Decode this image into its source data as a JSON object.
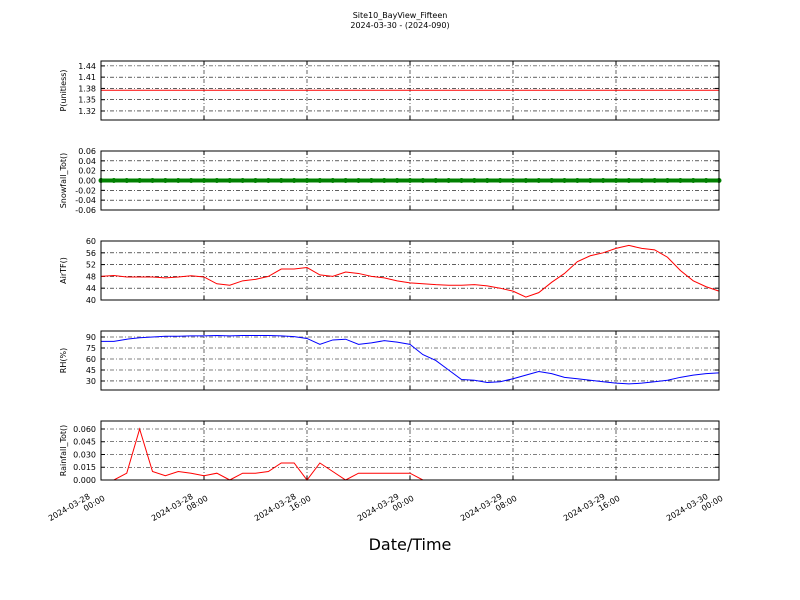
{
  "chart_data": [
    {
      "type": "line",
      "title": "Site10_BayView_Fifteen",
      "subtitle": "2024-03-30 - (2024-090)",
      "ylabel": "P(unitless)",
      "color": "#ff0000",
      "grid": true,
      "xtick_labels": false,
      "x": [
        "2024-03-28 00:00",
        "2024-03-28 01:00",
        "2024-03-28 02:00",
        "2024-03-28 03:00",
        "2024-03-28 04:00",
        "2024-03-28 05:00",
        "2024-03-28 06:00",
        "2024-03-28 07:00",
        "2024-03-28 08:00",
        "2024-03-28 09:00",
        "2024-03-28 10:00",
        "2024-03-28 11:00",
        "2024-03-28 12:00",
        "2024-03-28 13:00",
        "2024-03-28 14:00",
        "2024-03-28 15:00",
        "2024-03-28 16:00",
        "2024-03-28 17:00",
        "2024-03-28 18:00",
        "2024-03-28 19:00",
        "2024-03-28 20:00",
        "2024-03-28 21:00",
        "2024-03-28 22:00",
        "2024-03-28 23:00",
        "2024-03-29 00:00",
        "2024-03-29 01:00",
        "2024-03-29 02:00",
        "2024-03-29 03:00",
        "2024-03-29 04:00",
        "2024-03-29 05:00",
        "2024-03-29 06:00",
        "2024-03-29 07:00",
        "2024-03-29 08:00",
        "2024-03-29 09:00",
        "2024-03-29 10:00",
        "2024-03-29 11:00",
        "2024-03-29 12:00",
        "2024-03-29 13:00",
        "2024-03-29 14:00",
        "2024-03-29 15:00",
        "2024-03-29 16:00",
        "2024-03-29 17:00",
        "2024-03-29 18:00",
        "2024-03-29 19:00",
        "2024-03-29 20:00",
        "2024-03-29 21:00",
        "2024-03-29 22:00",
        "2024-03-29 23:00",
        "2024-03-30 00:00"
      ],
      "values": [
        1.375,
        1.375,
        1.375,
        1.375,
        1.375,
        1.375,
        1.375,
        1.375,
        1.375,
        1.375,
        1.375,
        1.375,
        1.375,
        1.375,
        1.375,
        1.375,
        1.375,
        1.375,
        1.375,
        1.375,
        1.375,
        1.375,
        1.375,
        1.375,
        1.375,
        1.375,
        1.375,
        1.375,
        1.375,
        1.375,
        1.375,
        1.375,
        1.375,
        1.375,
        1.375,
        1.375,
        1.375,
        1.375,
        1.375,
        1.375,
        1.375,
        1.375,
        1.375,
        1.375,
        1.375,
        1.375,
        1.375,
        1.375,
        1.375
      ],
      "xlim": [
        "2024-03-28 00:00",
        "2024-03-30 00:00"
      ],
      "xticks": [
        "2024-03-28 00:00",
        "2024-03-28 08:00",
        "2024-03-28 16:00",
        "2024-03-29 00:00",
        "2024-03-29 08:00",
        "2024-03-29 16:00",
        "2024-03-30 00:00"
      ],
      "ylim": [
        1.296,
        1.453
      ],
      "yticks": [
        1.32,
        1.35,
        1.38,
        1.41,
        1.44
      ]
    },
    {
      "type": "line",
      "ylabel": "Snowfall_Tot()",
      "color": "#008000",
      "markers": true,
      "grid": true,
      "xtick_labels": false,
      "x": [
        "2024-03-28 00:00",
        "2024-03-28 01:00",
        "2024-03-28 02:00",
        "2024-03-28 03:00",
        "2024-03-28 04:00",
        "2024-03-28 05:00",
        "2024-03-28 06:00",
        "2024-03-28 07:00",
        "2024-03-28 08:00",
        "2024-03-28 09:00",
        "2024-03-28 10:00",
        "2024-03-28 11:00",
        "2024-03-28 12:00",
        "2024-03-28 13:00",
        "2024-03-28 14:00",
        "2024-03-28 15:00",
        "2024-03-28 16:00",
        "2024-03-28 17:00",
        "2024-03-28 18:00",
        "2024-03-28 19:00",
        "2024-03-28 20:00",
        "2024-03-28 21:00",
        "2024-03-28 22:00",
        "2024-03-28 23:00",
        "2024-03-29 00:00",
        "2024-03-29 01:00",
        "2024-03-29 02:00",
        "2024-03-29 03:00",
        "2024-03-29 04:00",
        "2024-03-29 05:00",
        "2024-03-29 06:00",
        "2024-03-29 07:00",
        "2024-03-29 08:00",
        "2024-03-29 09:00",
        "2024-03-29 10:00",
        "2024-03-29 11:00",
        "2024-03-29 12:00",
        "2024-03-29 13:00",
        "2024-03-29 14:00",
        "2024-03-29 15:00",
        "2024-03-29 16:00",
        "2024-03-29 17:00",
        "2024-03-29 18:00",
        "2024-03-29 19:00",
        "2024-03-29 20:00",
        "2024-03-29 21:00",
        "2024-03-29 22:00",
        "2024-03-29 23:00",
        "2024-03-30 00:00"
      ],
      "values": [
        0,
        0,
        0,
        0,
        0,
        0,
        0,
        0,
        0,
        0,
        0,
        0,
        0,
        0,
        0,
        0,
        0,
        0,
        0,
        0,
        0,
        0,
        0,
        0,
        0,
        0,
        0,
        0,
        0,
        0,
        0,
        0,
        0,
        0,
        0,
        0,
        0,
        0,
        0,
        0,
        0,
        0,
        0,
        0,
        0,
        0,
        0,
        0,
        0
      ],
      "xlim": [
        "2024-03-28 00:00",
        "2024-03-30 00:00"
      ],
      "xticks": [
        "2024-03-28 00:00",
        "2024-03-28 08:00",
        "2024-03-28 16:00",
        "2024-03-29 00:00",
        "2024-03-29 08:00",
        "2024-03-29 16:00",
        "2024-03-30 00:00"
      ],
      "ylim": [
        -0.06,
        0.06
      ],
      "yticks": [
        -0.06,
        -0.04,
        -0.02,
        {
          "value": 0,
          "label": "0.00"
        },
        0.02,
        0.04,
        0.06
      ]
    },
    {
      "type": "line",
      "ylabel": "AirTF()",
      "color": "#ff0000",
      "grid": true,
      "xtick_labels": false,
      "x": [
        "2024-03-28 00:00",
        "2024-03-28 01:00",
        "2024-03-28 02:00",
        "2024-03-28 03:00",
        "2024-03-28 04:00",
        "2024-03-28 05:00",
        "2024-03-28 06:00",
        "2024-03-28 07:00",
        "2024-03-28 08:00",
        "2024-03-28 09:00",
        "2024-03-28 10:00",
        "2024-03-28 11:00",
        "2024-03-28 12:00",
        "2024-03-28 13:00",
        "2024-03-28 14:00",
        "2024-03-28 15:00",
        "2024-03-28 16:00",
        "2024-03-28 17:00",
        "2024-03-28 18:00",
        "2024-03-28 19:00",
        "2024-03-28 20:00",
        "2024-03-28 21:00",
        "2024-03-28 22:00",
        "2024-03-28 23:00",
        "2024-03-29 00:00",
        "2024-03-29 01:00",
        "2024-03-29 02:00",
        "2024-03-29 03:00",
        "2024-03-29 04:00",
        "2024-03-29 05:00",
        "2024-03-29 06:00",
        "2024-03-29 07:00",
        "2024-03-29 08:00",
        "2024-03-29 09:00",
        "2024-03-29 10:00",
        "2024-03-29 11:00",
        "2024-03-29 12:00",
        "2024-03-29 13:00",
        "2024-03-29 14:00",
        "2024-03-29 15:00",
        "2024-03-29 16:00",
        "2024-03-29 17:00",
        "2024-03-29 18:00",
        "2024-03-29 19:00",
        "2024-03-29 20:00",
        "2024-03-29 21:00",
        "2024-03-29 22:00",
        "2024-03-29 23:00",
        "2024-03-30 00:00"
      ],
      "values": [
        48,
        48.3,
        47.8,
        47.8,
        47.8,
        47.5,
        47.8,
        48.2,
        47.8,
        45.5,
        45,
        46.5,
        47,
        48,
        50.5,
        50.5,
        51,
        48.5,
        48,
        49.5,
        49,
        48,
        47.5,
        46.5,
        45.8,
        45.5,
        45.2,
        45,
        45,
        45.2,
        44.8,
        44,
        43,
        41,
        42.5,
        46,
        49,
        53,
        55,
        56,
        57.5,
        58.5,
        57.5,
        57,
        54.5,
        50,
        46.5,
        44.5,
        43
      ],
      "xlim": [
        "2024-03-28 00:00",
        "2024-03-30 00:00"
      ],
      "xticks": [
        "2024-03-28 00:00",
        "2024-03-28 08:00",
        "2024-03-28 16:00",
        "2024-03-29 00:00",
        "2024-03-29 08:00",
        "2024-03-29 16:00",
        "2024-03-30 00:00"
      ],
      "ylim": [
        40,
        60
      ],
      "yticks": [
        40,
        44,
        48,
        52,
        56,
        60
      ]
    },
    {
      "type": "line",
      "ylabel": "RH(%)",
      "color": "#0000ff",
      "grid": true,
      "xtick_labels": false,
      "x": [
        "2024-03-28 00:00",
        "2024-03-28 01:00",
        "2024-03-28 02:00",
        "2024-03-28 03:00",
        "2024-03-28 04:00",
        "2024-03-28 05:00",
        "2024-03-28 06:00",
        "2024-03-28 07:00",
        "2024-03-28 08:00",
        "2024-03-28 09:00",
        "2024-03-28 10:00",
        "2024-03-28 11:00",
        "2024-03-28 12:00",
        "2024-03-28 13:00",
        "2024-03-28 14:00",
        "2024-03-28 15:00",
        "2024-03-28 16:00",
        "2024-03-28 17:00",
        "2024-03-28 18:00",
        "2024-03-28 19:00",
        "2024-03-28 20:00",
        "2024-03-28 21:00",
        "2024-03-28 22:00",
        "2024-03-28 23:00",
        "2024-03-29 00:00",
        "2024-03-29 01:00",
        "2024-03-29 02:00",
        "2024-03-29 03:00",
        "2024-03-29 04:00",
        "2024-03-29 05:00",
        "2024-03-29 06:00",
        "2024-03-29 07:00",
        "2024-03-29 08:00",
        "2024-03-29 09:00",
        "2024-03-29 10:00",
        "2024-03-29 11:00",
        "2024-03-29 12:00",
        "2024-03-29 13:00",
        "2024-03-29 14:00",
        "2024-03-29 15:00",
        "2024-03-29 16:00",
        "2024-03-29 17:00",
        "2024-03-29 18:00",
        "2024-03-29 19:00",
        "2024-03-29 20:00",
        "2024-03-29 21:00",
        "2024-03-29 22:00",
        "2024-03-29 23:00",
        "2024-03-30 00:00"
      ],
      "values": [
        84,
        84,
        87,
        89,
        90,
        91,
        91,
        91.5,
        91.5,
        92,
        91.5,
        92,
        92,
        92,
        91.5,
        90.5,
        88,
        80,
        86,
        87,
        80,
        82,
        85,
        83,
        80,
        66,
        58,
        45,
        32,
        31,
        28,
        29,
        33,
        38,
        43,
        40,
        35,
        33,
        31,
        29,
        27,
        26,
        27,
        29,
        31,
        35,
        38,
        40,
        41
      ],
      "xlim": [
        "2024-03-28 00:00",
        "2024-03-30 00:00"
      ],
      "xticks": [
        "2024-03-28 00:00",
        "2024-03-28 08:00",
        "2024-03-28 16:00",
        "2024-03-29 00:00",
        "2024-03-29 08:00",
        "2024-03-29 16:00",
        "2024-03-30 00:00"
      ],
      "ylim": [
        17.7,
        98.2
      ],
      "yticks": [
        30,
        45,
        60,
        75,
        90
      ]
    },
    {
      "type": "line",
      "ylabel": "Rainfall_Tot()",
      "xlabel": "Date/Time",
      "color": "#ff0000",
      "grid": true,
      "xtick_labels": true,
      "x": [
        "2024-03-28 00:00",
        "2024-03-28 01:00",
        "2024-03-28 02:00",
        "2024-03-28 03:00",
        "2024-03-28 04:00",
        "2024-03-28 05:00",
        "2024-03-28 06:00",
        "2024-03-28 07:00",
        "2024-03-28 08:00",
        "2024-03-28 09:00",
        "2024-03-28 10:00",
        "2024-03-28 11:00",
        "2024-03-28 12:00",
        "2024-03-28 13:00",
        "2024-03-28 14:00",
        "2024-03-28 15:00",
        "2024-03-28 16:00",
        "2024-03-28 17:00",
        "2024-03-28 18:00",
        "2024-03-28 19:00",
        "2024-03-28 20:00",
        "2024-03-28 21:00",
        "2024-03-28 22:00",
        "2024-03-28 23:00",
        "2024-03-29 00:00",
        "2024-03-29 01:00",
        "2024-03-29 02:00",
        "2024-03-29 03:00",
        "2024-03-29 04:00",
        "2024-03-29 05:00",
        "2024-03-29 06:00",
        "2024-03-29 07:00",
        "2024-03-29 08:00",
        "2024-03-29 09:00",
        "2024-03-29 10:00",
        "2024-03-29 11:00",
        "2024-03-29 12:00",
        "2024-03-29 13:00",
        "2024-03-29 14:00",
        "2024-03-29 15:00",
        "2024-03-29 16:00",
        "2024-03-29 17:00",
        "2024-03-29 18:00",
        "2024-03-29 19:00",
        "2024-03-29 20:00",
        "2024-03-29 21:00",
        "2024-03-29 22:00",
        "2024-03-29 23:00",
        "2024-03-30 00:00"
      ],
      "values": [
        0,
        0,
        0.008,
        0.06,
        0.01,
        0.005,
        0.01,
        0.008,
        0.005,
        0.008,
        0,
        0.008,
        0.008,
        0.01,
        0.02,
        0.02,
        0,
        0.02,
        0.01,
        0,
        0.008,
        0.008,
        0.008,
        0.008,
        0.008,
        0,
        0,
        0,
        0,
        0,
        0,
        0,
        0,
        0,
        0,
        0,
        0,
        0,
        0,
        0,
        0,
        0,
        0,
        0,
        0,
        0,
        0,
        0,
        0
      ],
      "xlim": [
        "2024-03-28 00:00",
        "2024-03-30 00:00"
      ],
      "xticks": [
        "2024-03-28 00:00",
        "2024-03-28 08:00",
        "2024-03-28 16:00",
        "2024-03-29 00:00",
        "2024-03-29 08:00",
        "2024-03-29 16:00",
        "2024-03-30 00:00"
      ],
      "ylim": [
        0,
        0.0694
      ],
      "yticks": [
        {
          "value": 0,
          "label": "0.000"
        },
        0.015,
        {
          "value": 0.03,
          "label": "0.030"
        },
        0.045,
        {
          "value": 0.06,
          "label": "0.060"
        }
      ]
    }
  ]
}
